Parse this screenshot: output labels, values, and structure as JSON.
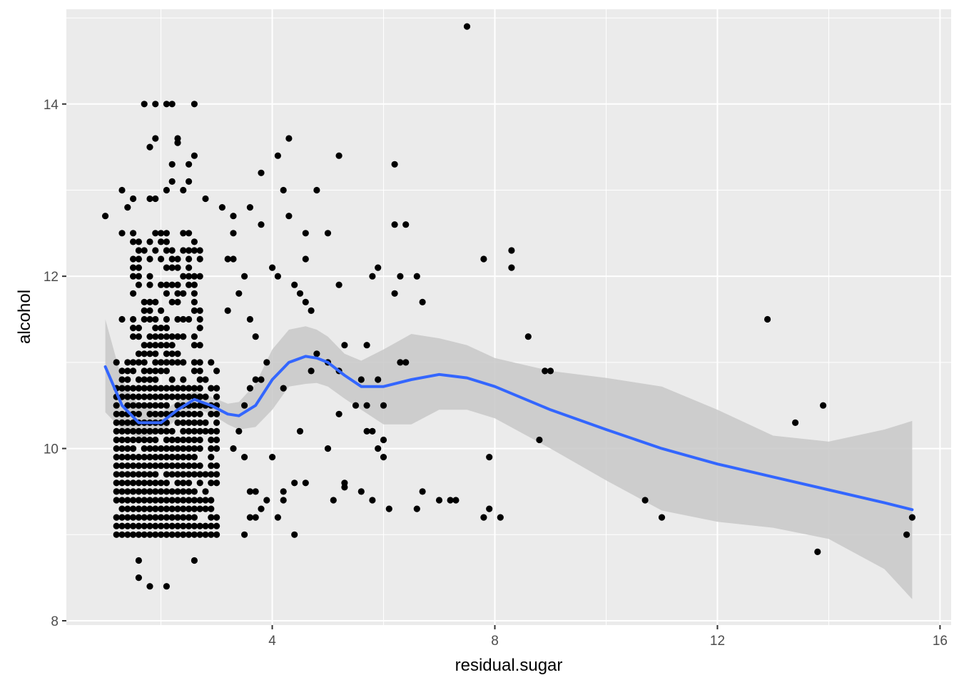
{
  "chart_data": {
    "type": "scatter",
    "title": "",
    "xlabel": "residual.sugar",
    "ylabel": "alcohol",
    "xlim": [
      0.3,
      16.2
    ],
    "ylim": [
      7.95,
      15.1
    ],
    "x_ticks": [
      4,
      8,
      12,
      16
    ],
    "y_ticks": [
      8,
      10,
      12,
      14
    ],
    "grid": true,
    "colors": {
      "panel": "#ebebeb",
      "grid": "#ffffff",
      "points": "#000000",
      "smooth_line": "#3366ff",
      "ribbon": "#c8c8c8"
    },
    "smooth": {
      "x": [
        1.0,
        1.3,
        1.6,
        2.0,
        2.3,
        2.6,
        2.9,
        3.2,
        3.4,
        3.7,
        4.0,
        4.3,
        4.6,
        4.8,
        5.0,
        5.3,
        5.6,
        6.0,
        6.5,
        7.0,
        7.5,
        8.0,
        9.0,
        10.0,
        11.0,
        12.0,
        13.0,
        14.0,
        15.0,
        15.5
      ],
      "y": [
        10.95,
        10.5,
        10.3,
        10.3,
        10.45,
        10.57,
        10.5,
        10.4,
        10.38,
        10.5,
        10.8,
        11.0,
        11.07,
        11.05,
        11.0,
        10.85,
        10.72,
        10.72,
        10.8,
        10.86,
        10.82,
        10.72,
        10.45,
        10.22,
        10.0,
        9.82,
        9.67,
        9.52,
        9.37,
        9.29
      ],
      "upper": [
        11.5,
        10.8,
        10.5,
        10.42,
        10.55,
        10.67,
        10.6,
        10.52,
        10.54,
        10.75,
        11.15,
        11.38,
        11.42,
        11.38,
        11.3,
        11.1,
        11.02,
        11.15,
        11.33,
        11.28,
        11.2,
        11.05,
        10.9,
        10.82,
        10.72,
        10.45,
        10.15,
        10.08,
        10.22,
        10.32
      ],
      "lower": [
        10.42,
        10.22,
        10.12,
        10.18,
        10.35,
        10.47,
        10.4,
        10.28,
        10.22,
        10.25,
        10.45,
        10.72,
        10.75,
        10.76,
        10.72,
        10.58,
        10.45,
        10.28,
        10.28,
        10.45,
        10.45,
        10.35,
        10.0,
        9.63,
        9.28,
        9.15,
        9.08,
        8.95,
        8.6,
        8.25
      ]
    },
    "points": [
      [
        7.5,
        14.9
      ],
      [
        1.7,
        14.0
      ],
      [
        1.9,
        14.0
      ],
      [
        2.1,
        14.0
      ],
      [
        2.2,
        14.0
      ],
      [
        2.6,
        14.0
      ],
      [
        1.8,
        13.5
      ],
      [
        1.9,
        13.6
      ],
      [
        2.3,
        13.6
      ],
      [
        2.3,
        13.55
      ],
      [
        4.3,
        13.6
      ],
      [
        5.2,
        13.4
      ],
      [
        4.1,
        13.4
      ],
      [
        2.2,
        13.3
      ],
      [
        2.5,
        13.3
      ],
      [
        2.6,
        13.4
      ],
      [
        6.2,
        13.3
      ],
      [
        3.8,
        13.2
      ],
      [
        2.2,
        13.1
      ],
      [
        2.5,
        13.1
      ],
      [
        1.3,
        13.0
      ],
      [
        2.1,
        13.0
      ],
      [
        2.4,
        13.0
      ],
      [
        4.2,
        13.0
      ],
      [
        4.8,
        13.0
      ],
      [
        1.5,
        12.9
      ],
      [
        1.8,
        12.9
      ],
      [
        1.9,
        12.9
      ],
      [
        2.8,
        12.9
      ],
      [
        1.0,
        12.7
      ],
      [
        3.3,
        12.7
      ],
      [
        4.3,
        12.7
      ],
      [
        1.4,
        12.8
      ],
      [
        3.1,
        12.8
      ],
      [
        3.6,
        12.8
      ],
      [
        3.8,
        12.6
      ],
      [
        6.2,
        12.6
      ],
      [
        6.4,
        12.6
      ],
      [
        4.6,
        12.5
      ],
      [
        5.0,
        12.5
      ],
      [
        1.3,
        12.5
      ],
      [
        3.3,
        12.5
      ],
      [
        8.3,
        12.3
      ],
      [
        8.3,
        12.1
      ],
      [
        7.8,
        12.2
      ],
      [
        4.6,
        12.2
      ],
      [
        5.9,
        12.1
      ],
      [
        6.3,
        12.0
      ],
      [
        6.6,
        12.0
      ],
      [
        5.8,
        12.0
      ],
      [
        4.0,
        12.1
      ],
      [
        4.1,
        12.0
      ],
      [
        5.2,
        11.9
      ],
      [
        4.4,
        11.9
      ],
      [
        4.5,
        11.8
      ],
      [
        6.2,
        11.8
      ],
      [
        6.7,
        11.7
      ],
      [
        4.6,
        11.7
      ],
      [
        4.7,
        11.6
      ],
      [
        12.9,
        11.5
      ],
      [
        1.3,
        11.5
      ],
      [
        5.3,
        11.2
      ],
      [
        5.7,
        11.2
      ],
      [
        8.6,
        11.3
      ],
      [
        6.4,
        11.0
      ],
      [
        6.3,
        11.0
      ],
      [
        5.0,
        11.0
      ],
      [
        4.7,
        10.9
      ],
      [
        4.8,
        11.1
      ],
      [
        5.2,
        10.9
      ],
      [
        8.9,
        10.9
      ],
      [
        9.0,
        10.9
      ],
      [
        5.6,
        10.8
      ],
      [
        5.9,
        10.8
      ],
      [
        4.2,
        10.7
      ],
      [
        5.5,
        10.5
      ],
      [
        5.7,
        10.5
      ],
      [
        6.0,
        10.5
      ],
      [
        5.2,
        10.4
      ],
      [
        13.9,
        10.5
      ],
      [
        13.4,
        10.3
      ],
      [
        4.5,
        10.2
      ],
      [
        5.7,
        10.2
      ],
      [
        5.8,
        10.2
      ],
      [
        6.0,
        10.1
      ],
      [
        5.0,
        10.0
      ],
      [
        5.9,
        10.0
      ],
      [
        6.0,
        9.9
      ],
      [
        7.9,
        9.9
      ],
      [
        8.8,
        10.1
      ],
      [
        4.0,
        9.9
      ],
      [
        3.5,
        9.9
      ],
      [
        4.6,
        9.6
      ],
      [
        5.3,
        9.6
      ],
      [
        5.3,
        9.55
      ],
      [
        5.6,
        9.5
      ],
      [
        5.1,
        9.4
      ],
      [
        5.8,
        9.4
      ],
      [
        6.1,
        9.3
      ],
      [
        6.7,
        9.5
      ],
      [
        6.6,
        9.3
      ],
      [
        7.0,
        9.4
      ],
      [
        7.2,
        9.4
      ],
      [
        7.3,
        9.4
      ],
      [
        7.8,
        9.2
      ],
      [
        7.9,
        9.3
      ],
      [
        8.1,
        9.2
      ],
      [
        10.7,
        9.4
      ],
      [
        11.0,
        9.2
      ],
      [
        4.2,
        9.5
      ],
      [
        4.2,
        9.4
      ],
      [
        4.4,
        9.6
      ],
      [
        4.4,
        9.0
      ],
      [
        3.5,
        9.0
      ],
      [
        4.1,
        9.2
      ],
      [
        15.5,
        9.2
      ],
      [
        15.4,
        9.0
      ],
      [
        13.8,
        8.8
      ],
      [
        1.6,
        8.7
      ],
      [
        1.6,
        8.5
      ],
      [
        1.8,
        8.4
      ],
      [
        2.1,
        8.4
      ],
      [
        2.6,
        8.7
      ],
      [
        3.6,
        9.5
      ],
      [
        3.7,
        9.5
      ],
      [
        3.8,
        9.3
      ],
      [
        3.9,
        9.4
      ],
      [
        3.6,
        9.2
      ],
      [
        3.7,
        9.2
      ],
      [
        3.3,
        10.0
      ],
      [
        3.4,
        10.2
      ],
      [
        3.5,
        10.5
      ],
      [
        3.6,
        10.7
      ],
      [
        3.7,
        10.8
      ],
      [
        3.8,
        10.8
      ],
      [
        3.9,
        11.0
      ],
      [
        3.2,
        11.6
      ],
      [
        3.2,
        12.2
      ],
      [
        3.3,
        12.2
      ],
      [
        3.4,
        11.8
      ],
      [
        3.6,
        11.5
      ],
      [
        3.5,
        12.0
      ],
      [
        3.7,
        11.3
      ]
    ]
  }
}
